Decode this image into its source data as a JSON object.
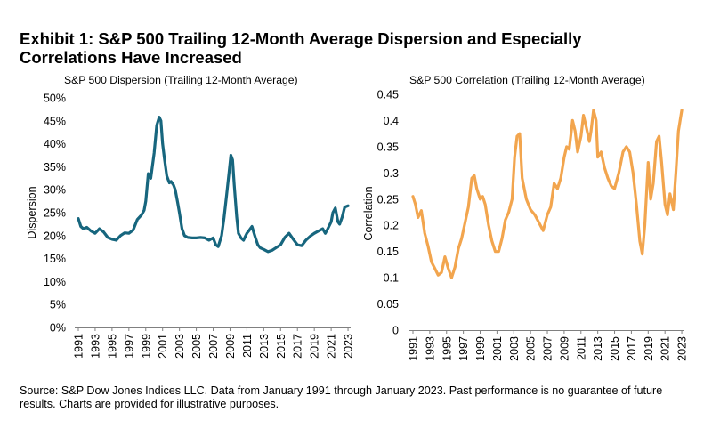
{
  "header": {
    "title_line1": "Exhibit 1: S&P 500 Trailing 12-Month Average Dispersion and Especially",
    "title_line2": "Correlations Have Increased"
  },
  "footer": {
    "source_line1": "Source: S&P Dow Jones Indices LLC. Data from January 1991 through January 2023. Past performance is no guarantee of future",
    "source_line2": "results. Charts are provided for illustrative purposes."
  },
  "colors": {
    "dispersion": "#17667e",
    "correlation": "#f2a54e",
    "axis": "#808080"
  },
  "chart_data": [
    {
      "type": "line",
      "title": "S&P 500 Dispersion (Trailing 12-Month Average)",
      "xlabel": "",
      "ylabel": "Dispersion",
      "ylim": [
        0,
        0.5
      ],
      "yticks": [
        0,
        0.05,
        0.1,
        0.15,
        0.2,
        0.25,
        0.3,
        0.35,
        0.4,
        0.45,
        0.5
      ],
      "ytick_labels": [
        "0%",
        "5%",
        "10%",
        "15%",
        "20%",
        "25%",
        "30%",
        "35%",
        "40%",
        "45%",
        "50%"
      ],
      "xlim": [
        1991,
        2023.1
      ],
      "xticks": [
        "1991",
        "1993",
        "1995",
        "1997",
        "1999",
        "2001",
        "2003",
        "2005",
        "2007",
        "2009",
        "2011",
        "2013",
        "2015",
        "2017",
        "2019",
        "2021",
        "2023"
      ],
      "series": [
        {
          "name": "Dispersion",
          "x": [
            1991.0,
            1991.3,
            1991.6,
            1992.0,
            1992.5,
            1993.0,
            1993.5,
            1994.0,
            1994.5,
            1995.0,
            1995.5,
            1996.0,
            1996.5,
            1997.0,
            1997.5,
            1998.0,
            1998.5,
            1998.8,
            1999.0,
            1999.3,
            1999.6,
            2000.0,
            2000.3,
            2000.6,
            2000.8,
            2001.0,
            2001.2,
            2001.5,
            2001.8,
            2002.0,
            2002.3,
            2002.5,
            2002.8,
            2003.0,
            2003.3,
            2003.6,
            2004.0,
            2004.5,
            2005.0,
            2005.5,
            2006.0,
            2006.5,
            2007.0,
            2007.3,
            2007.6,
            2008.0,
            2008.3,
            2008.6,
            2008.9,
            2009.1,
            2009.3,
            2009.5,
            2009.8,
            2010.0,
            2010.3,
            2010.6,
            2011.0,
            2011.3,
            2011.6,
            2012.0,
            2012.3,
            2012.6,
            2013.0,
            2013.5,
            2014.0,
            2014.5,
            2015.0,
            2015.5,
            2016.0,
            2016.5,
            2017.0,
            2017.5,
            2018.0,
            2018.3,
            2018.6,
            2019.0,
            2019.5,
            2020.0,
            2020.3,
            2020.6,
            2021.0,
            2021.2,
            2021.5,
            2021.8,
            2022.0,
            2022.3,
            2022.6,
            2023.0
          ],
          "values": [
            0.237,
            0.22,
            0.215,
            0.218,
            0.21,
            0.205,
            0.215,
            0.208,
            0.196,
            0.192,
            0.19,
            0.2,
            0.206,
            0.205,
            0.212,
            0.235,
            0.245,
            0.255,
            0.275,
            0.335,
            0.325,
            0.38,
            0.44,
            0.458,
            0.45,
            0.4,
            0.37,
            0.33,
            0.315,
            0.318,
            0.31,
            0.3,
            0.27,
            0.25,
            0.215,
            0.2,
            0.196,
            0.195,
            0.195,
            0.196,
            0.195,
            0.19,
            0.195,
            0.18,
            0.176,
            0.2,
            0.24,
            0.29,
            0.34,
            0.375,
            0.365,
            0.31,
            0.24,
            0.205,
            0.195,
            0.19,
            0.205,
            0.212,
            0.22,
            0.196,
            0.18,
            0.173,
            0.17,
            0.165,
            0.168,
            0.174,
            0.18,
            0.196,
            0.205,
            0.192,
            0.18,
            0.178,
            0.19,
            0.195,
            0.2,
            0.205,
            0.21,
            0.215,
            0.205,
            0.215,
            0.23,
            0.25,
            0.26,
            0.23,
            0.225,
            0.24,
            0.262,
            0.265
          ]
        }
      ]
    },
    {
      "type": "line",
      "title": "S&P 500 Correlation (Trailing 12-Month Average)",
      "xlabel": "",
      "ylabel": "Correlation",
      "ylim": [
        0,
        0.45
      ],
      "yticks": [
        0,
        0.05,
        0.1,
        0.15,
        0.2,
        0.25,
        0.3,
        0.35,
        0.4,
        0.45
      ],
      "ytick_labels": [
        "0",
        "0.05",
        "0.1",
        "0.15",
        "0.2",
        "0.25",
        "0.3",
        "0.35",
        "0.4",
        "0.45"
      ],
      "xlim": [
        1991,
        2023.1
      ],
      "xticks": [
        "1991",
        "1993",
        "1995",
        "1997",
        "1999",
        "2001",
        "2003",
        "2005",
        "2007",
        "2009",
        "2011",
        "2013",
        "2015",
        "2017",
        "2019",
        "2021",
        "2023"
      ],
      "series": [
        {
          "name": "Correlation",
          "x": [
            1991.0,
            1991.3,
            1991.6,
            1992.0,
            1992.4,
            1992.8,
            1993.2,
            1993.6,
            1994.0,
            1994.4,
            1994.8,
            1995.2,
            1995.6,
            1996.0,
            1996.4,
            1996.8,
            1997.2,
            1997.6,
            1998.0,
            1998.3,
            1998.6,
            1999.0,
            1999.3,
            1999.6,
            2000.0,
            2000.4,
            2000.8,
            2001.2,
            2001.6,
            2002.0,
            2002.4,
            2002.8,
            2003.1,
            2003.4,
            2003.7,
            2004.0,
            2004.5,
            2005.0,
            2005.5,
            2006.0,
            2006.5,
            2007.0,
            2007.4,
            2007.8,
            2008.2,
            2008.6,
            2009.0,
            2009.3,
            2009.6,
            2010.0,
            2010.3,
            2010.6,
            2011.0,
            2011.3,
            2011.6,
            2012.0,
            2012.2,
            2012.5,
            2012.8,
            2013.0,
            2013.4,
            2013.8,
            2014.2,
            2014.6,
            2015.0,
            2015.5,
            2016.0,
            2016.4,
            2016.8,
            2017.2,
            2017.6,
            2018.0,
            2018.3,
            2018.6,
            2019.0,
            2019.3,
            2019.6,
            2020.0,
            2020.3,
            2020.6,
            2021.0,
            2021.3,
            2021.6,
            2022.0,
            2022.3,
            2022.6,
            2023.0
          ],
          "values": [
            0.255,
            0.24,
            0.215,
            0.228,
            0.185,
            0.16,
            0.13,
            0.118,
            0.105,
            0.11,
            0.14,
            0.118,
            0.1,
            0.12,
            0.155,
            0.175,
            0.205,
            0.235,
            0.29,
            0.295,
            0.27,
            0.25,
            0.255,
            0.24,
            0.2,
            0.17,
            0.15,
            0.15,
            0.175,
            0.21,
            0.225,
            0.25,
            0.33,
            0.37,
            0.375,
            0.29,
            0.25,
            0.23,
            0.22,
            0.205,
            0.19,
            0.22,
            0.235,
            0.28,
            0.27,
            0.29,
            0.33,
            0.35,
            0.345,
            0.4,
            0.38,
            0.34,
            0.37,
            0.41,
            0.39,
            0.36,
            0.38,
            0.42,
            0.4,
            0.33,
            0.34,
            0.31,
            0.29,
            0.275,
            0.27,
            0.3,
            0.34,
            0.35,
            0.34,
            0.3,
            0.24,
            0.17,
            0.145,
            0.2,
            0.32,
            0.25,
            0.28,
            0.36,
            0.37,
            0.32,
            0.24,
            0.22,
            0.26,
            0.23,
            0.3,
            0.38,
            0.42
          ]
        }
      ]
    }
  ]
}
